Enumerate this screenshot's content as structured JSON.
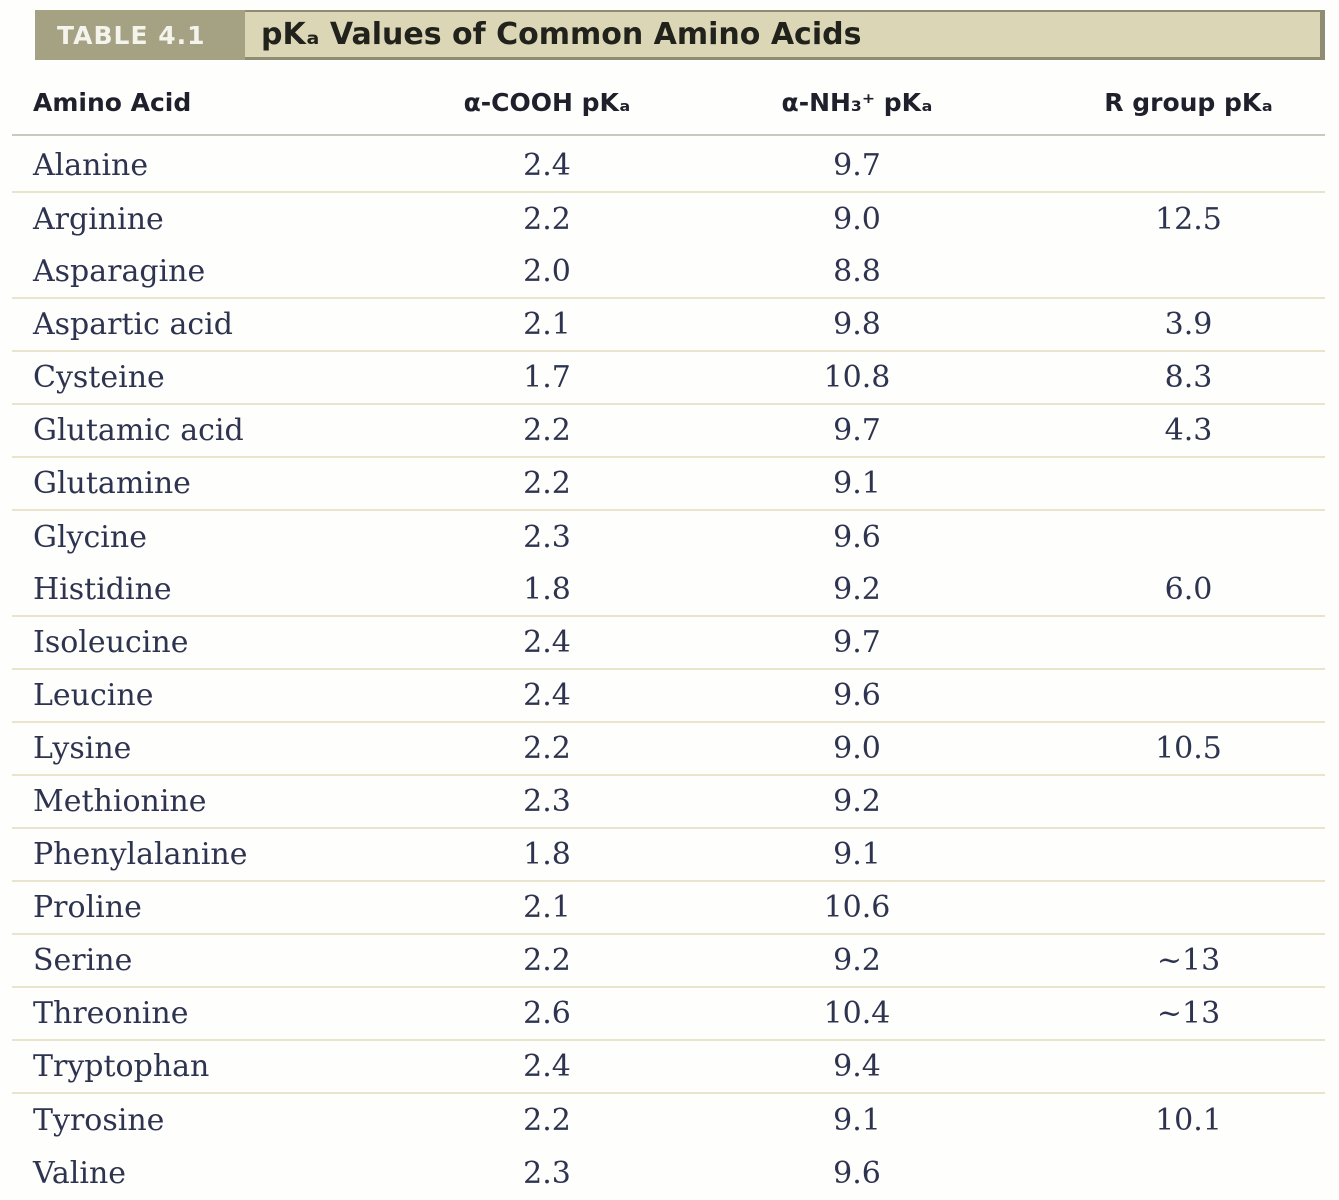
{
  "figure": {
    "label": "TABLE 4.1",
    "title": "pKₐ Values of Common Amino Acids"
  },
  "columns": {
    "amino_acid": "Amino Acid",
    "cooh": "α-COOH pKₐ",
    "nh3": "α-NH₃⁺ pKₐ",
    "r_group": "R group pKₐ"
  },
  "rows": [
    {
      "amino_acid": "Alanine",
      "cooh_pka": "2.4",
      "nh3_pka": "9.7",
      "r_group_pka": "",
      "divider": true
    },
    {
      "amino_acid": "Arginine",
      "cooh_pka": "2.2",
      "nh3_pka": "9.0",
      "r_group_pka": "12.5",
      "divider": false
    },
    {
      "amino_acid": "Asparagine",
      "cooh_pka": "2.0",
      "nh3_pka": "8.8",
      "r_group_pka": "",
      "divider": true
    },
    {
      "amino_acid": "Aspartic acid",
      "cooh_pka": "2.1",
      "nh3_pka": "9.8",
      "r_group_pka": "3.9",
      "divider": true
    },
    {
      "amino_acid": "Cysteine",
      "cooh_pka": "1.7",
      "nh3_pka": "10.8",
      "r_group_pka": "8.3",
      "divider": true
    },
    {
      "amino_acid": "Glutamic acid",
      "cooh_pka": "2.2",
      "nh3_pka": "9.7",
      "r_group_pka": "4.3",
      "divider": true
    },
    {
      "amino_acid": "Glutamine",
      "cooh_pka": "2.2",
      "nh3_pka": "9.1",
      "r_group_pka": "",
      "divider": true
    },
    {
      "amino_acid": "Glycine",
      "cooh_pka": "2.3",
      "nh3_pka": "9.6",
      "r_group_pka": "",
      "divider": false
    },
    {
      "amino_acid": "Histidine",
      "cooh_pka": "1.8",
      "nh3_pka": "9.2",
      "r_group_pka": "6.0",
      "divider": true
    },
    {
      "amino_acid": "Isoleucine",
      "cooh_pka": "2.4",
      "nh3_pka": "9.7",
      "r_group_pka": "",
      "divider": true
    },
    {
      "amino_acid": "Leucine",
      "cooh_pka": "2.4",
      "nh3_pka": "9.6",
      "r_group_pka": "",
      "divider": true
    },
    {
      "amino_acid": "Lysine",
      "cooh_pka": "2.2",
      "nh3_pka": "9.0",
      "r_group_pka": "10.5",
      "divider": true
    },
    {
      "amino_acid": "Methionine",
      "cooh_pka": "2.3",
      "nh3_pka": "9.2",
      "r_group_pka": "",
      "divider": true
    },
    {
      "amino_acid": "Phenylalanine",
      "cooh_pka": "1.8",
      "nh3_pka": "9.1",
      "r_group_pka": "",
      "divider": true
    },
    {
      "amino_acid": "Proline",
      "cooh_pka": "2.1",
      "nh3_pka": "10.6",
      "r_group_pka": "",
      "divider": true
    },
    {
      "amino_acid": "Serine",
      "cooh_pka": "2.2",
      "nh3_pka": "9.2",
      "r_group_pka": "~13",
      "divider": true
    },
    {
      "amino_acid": "Threonine",
      "cooh_pka": "2.6",
      "nh3_pka": "10.4",
      "r_group_pka": "~13",
      "divider": true
    },
    {
      "amino_acid": "Tryptophan",
      "cooh_pka": "2.4",
      "nh3_pka": "9.4",
      "r_group_pka": "",
      "divider": true
    },
    {
      "amino_acid": "Tyrosine",
      "cooh_pka": "2.2",
      "nh3_pka": "9.1",
      "r_group_pka": "10.1",
      "divider": false
    },
    {
      "amino_acid": "Valine",
      "cooh_pka": "2.3",
      "nh3_pka": "9.6",
      "r_group_pka": "",
      "divider": false
    }
  ],
  "colors": {
    "page_bg": "#fefefc",
    "label_box_bg": "#a5a284",
    "label_text": "#f4f3ec",
    "title_bar_bg": "#dbd6b5",
    "bar_edge": "#8f8c74",
    "title_text": "#22221d",
    "header_text": "#20202c",
    "body_text": "#2e3450",
    "row_divider": "#e9e5cd",
    "header_divider": "#c9c9c0"
  }
}
